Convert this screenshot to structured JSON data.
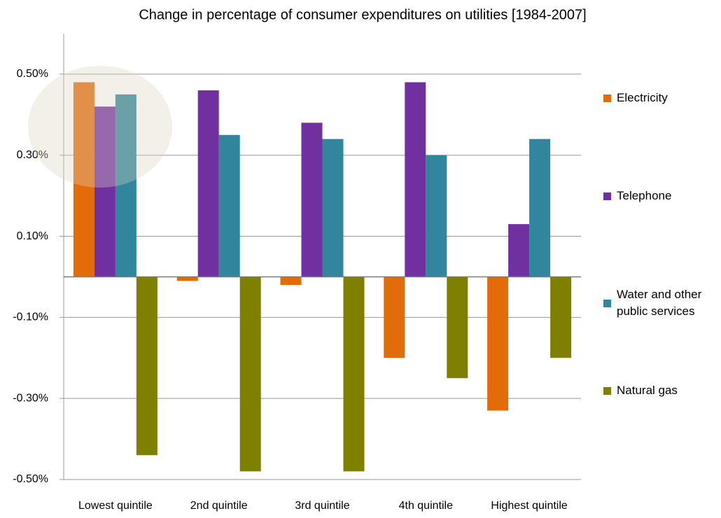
{
  "chart_data": {
    "type": "bar",
    "title": "Change in percentage of consumer expenditures on utilities [1984-2007]",
    "categories": [
      "Lowest quintile",
      "2nd quintile",
      "3rd quintile",
      "4th quintile",
      "Highest quintile"
    ],
    "series": [
      {
        "name": "Electricity",
        "color": "#e36c0a",
        "values": [
          0.48,
          -0.01,
          -0.02,
          -0.2,
          -0.33
        ]
      },
      {
        "name": "Telephone",
        "color": "#7030a0",
        "values": [
          0.42,
          0.46,
          0.38,
          0.48,
          0.13
        ]
      },
      {
        "name": "Water and other public services",
        "color": "#31859c",
        "values": [
          0.45,
          0.35,
          0.34,
          0.3,
          0.34
        ]
      },
      {
        "name": "Natural gas",
        "color": "#7f8000",
        "values": [
          -0.44,
          -0.48,
          -0.48,
          -0.25,
          -0.2
        ]
      }
    ],
    "ylim": [
      -0.5,
      0.6
    ],
    "yticks": [
      {
        "value": 0.5,
        "label": "0.50%"
      },
      {
        "value": 0.3,
        "label": "0.30%"
      },
      {
        "value": 0.1,
        "label": "0.10%"
      },
      {
        "value": -0.1,
        "label": "-0.10%"
      },
      {
        "value": -0.3,
        "label": "-0.30%"
      },
      {
        "value": -0.5,
        "label": "-0.50%"
      }
    ],
    "grid": true,
    "legend": "right"
  }
}
